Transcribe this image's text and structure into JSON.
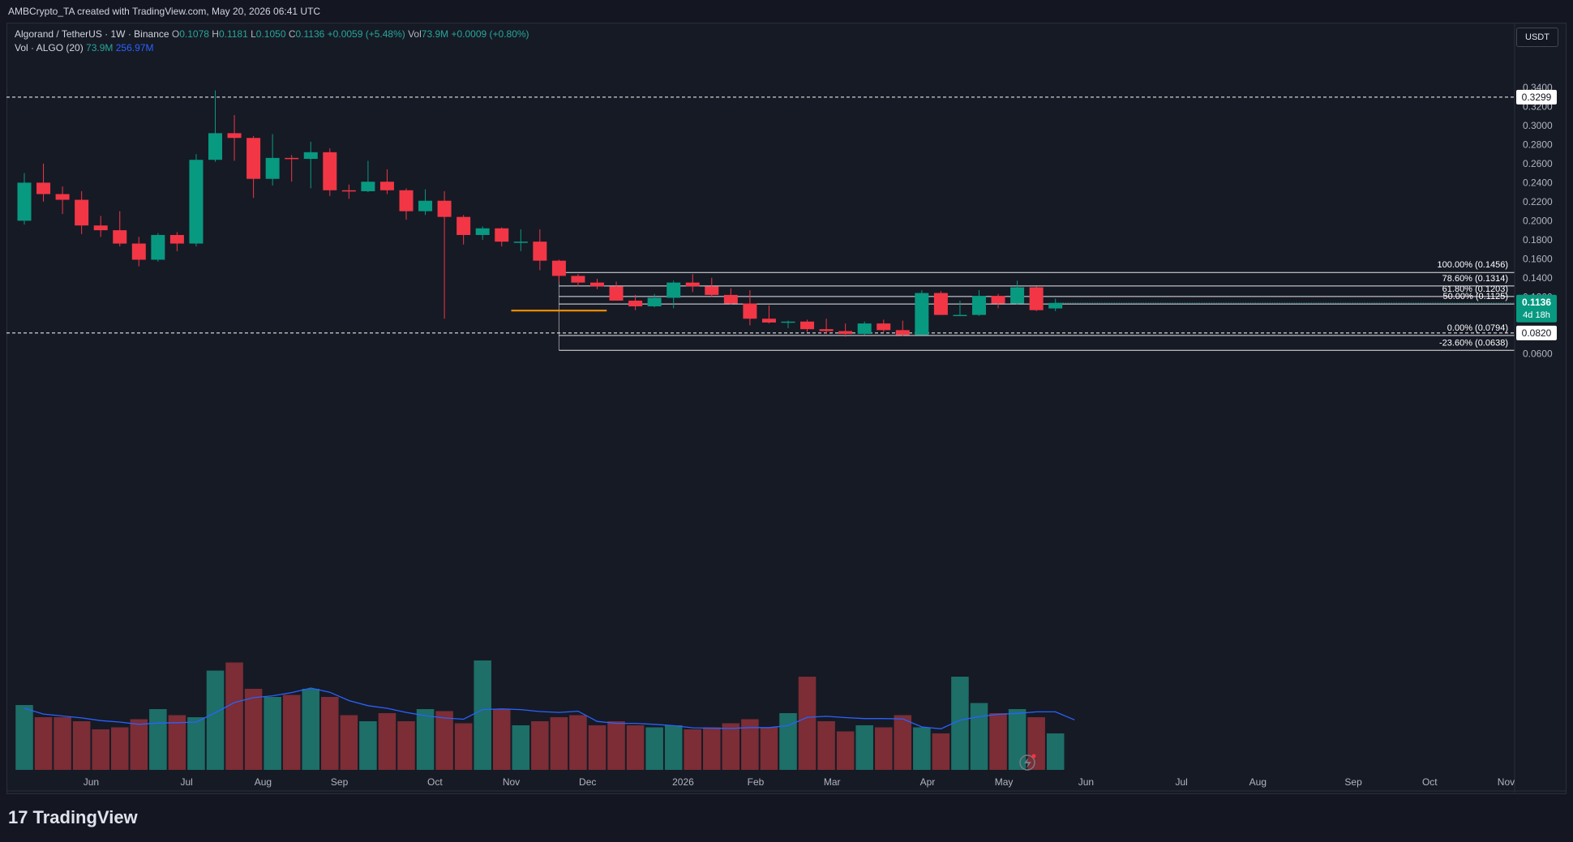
{
  "header": {
    "attribution": "AMBCrypto_TA created with TradingView.com, May 20, 2026 06:41 UTC"
  },
  "legend": {
    "symbol": "Algorand / TetherUS · 1W · Binance",
    "open_label": "O",
    "open": "0.1078",
    "high_label": "H",
    "high": "0.1181",
    "low_label": "L",
    "low": "0.1050",
    "close_label": "C",
    "close": "0.1136",
    "change": "+0.0059 (+5.48%)",
    "vol_label": "Vol",
    "vol": "73.9M",
    "vol_change": "+0.0009 (+0.80%)",
    "vol_study": "Vol · ALGO (20)",
    "vol_study_value": "73.9M",
    "vol_ma_value": "256.97M"
  },
  "currency_button": "USDT",
  "brand": {
    "logo_mark": "17",
    "name": "TradingView"
  },
  "colors": {
    "up": "#089981",
    "down": "#f23645",
    "vol_up": "#1d6f68",
    "vol_down": "#7c2d35",
    "ma": "#2962ff",
    "orange": "#ff9800"
  },
  "chart_data": {
    "type": "candlestick",
    "y_axis": {
      "min": 0.055,
      "max": 0.35,
      "ticks": [
        "0.3400",
        "0.3200",
        "0.3000",
        "0.2800",
        "0.2600",
        "0.2400",
        "0.2200",
        "0.2000",
        "0.1800",
        "0.1600",
        "0.1400",
        "0.1200",
        "0.1000",
        "0.0600"
      ]
    },
    "x_axis_labels": [
      {
        "i": 3.5,
        "label": "Jun"
      },
      {
        "i": 8.5,
        "label": "Jul"
      },
      {
        "i": 12.5,
        "label": "Aug"
      },
      {
        "i": 16.5,
        "label": "Sep"
      },
      {
        "i": 21.5,
        "label": "Oct"
      },
      {
        "i": 25.5,
        "label": "Nov"
      },
      {
        "i": 29.5,
        "label": "Dec"
      },
      {
        "i": 34.5,
        "label": "2026"
      },
      {
        "i": 38.3,
        "label": "Feb"
      },
      {
        "i": 42.3,
        "label": "Mar"
      },
      {
        "i": 47.3,
        "label": "Apr"
      },
      {
        "i": 51.3,
        "label": "May"
      },
      {
        "i": 55.6,
        "label": "Jun"
      },
      {
        "i": 60.6,
        "label": "Jul"
      },
      {
        "i": 64.6,
        "label": "Aug"
      },
      {
        "i": 69.6,
        "label": "Sep"
      },
      {
        "i": 73.6,
        "label": "Oct"
      },
      {
        "i": 77.6,
        "label": "Nov"
      }
    ],
    "candles": [
      {
        "o": 0.2,
        "h": 0.25,
        "l": 0.196,
        "c": 0.24
      },
      {
        "o": 0.24,
        "h": 0.26,
        "l": 0.22,
        "c": 0.228
      },
      {
        "o": 0.228,
        "h": 0.236,
        "l": 0.207,
        "c": 0.222
      },
      {
        "o": 0.222,
        "h": 0.231,
        "l": 0.186,
        "c": 0.195
      },
      {
        "o": 0.195,
        "h": 0.205,
        "l": 0.183,
        "c": 0.19
      },
      {
        "o": 0.19,
        "h": 0.21,
        "l": 0.173,
        "c": 0.176
      },
      {
        "o": 0.176,
        "h": 0.183,
        "l": 0.152,
        "c": 0.159
      },
      {
        "o": 0.159,
        "h": 0.187,
        "l": 0.157,
        "c": 0.185
      },
      {
        "o": 0.185,
        "h": 0.188,
        "l": 0.168,
        "c": 0.176
      },
      {
        "o": 0.176,
        "h": 0.27,
        "l": 0.173,
        "c": 0.264
      },
      {
        "o": 0.264,
        "h": 0.337,
        "l": 0.262,
        "c": 0.292
      },
      {
        "o": 0.292,
        "h": 0.311,
        "l": 0.263,
        "c": 0.287
      },
      {
        "o": 0.287,
        "h": 0.289,
        "l": 0.224,
        "c": 0.244
      },
      {
        "o": 0.244,
        "h": 0.291,
        "l": 0.237,
        "c": 0.266
      },
      {
        "o": 0.266,
        "h": 0.269,
        "l": 0.241,
        "c": 0.265
      },
      {
        "o": 0.265,
        "h": 0.283,
        "l": 0.234,
        "c": 0.272
      },
      {
        "o": 0.272,
        "h": 0.276,
        "l": 0.226,
        "c": 0.232
      },
      {
        "o": 0.232,
        "h": 0.238,
        "l": 0.223,
        "c": 0.231
      },
      {
        "o": 0.231,
        "h": 0.263,
        "l": 0.23,
        "c": 0.241
      },
      {
        "o": 0.241,
        "h": 0.254,
        "l": 0.228,
        "c": 0.232
      },
      {
        "o": 0.232,
        "h": 0.234,
        "l": 0.201,
        "c": 0.21
      },
      {
        "o": 0.21,
        "h": 0.233,
        "l": 0.206,
        "c": 0.221
      },
      {
        "o": 0.221,
        "h": 0.231,
        "l": 0.097,
        "c": 0.204
      },
      {
        "o": 0.204,
        "h": 0.206,
        "l": 0.175,
        "c": 0.185
      },
      {
        "o": 0.185,
        "h": 0.194,
        "l": 0.18,
        "c": 0.192
      },
      {
        "o": 0.192,
        "h": 0.193,
        "l": 0.173,
        "c": 0.178
      },
      {
        "o": 0.178,
        "h": 0.191,
        "l": 0.168,
        "c": 0.178
      },
      {
        "o": 0.178,
        "h": 0.191,
        "l": 0.148,
        "c": 0.158
      },
      {
        "o": 0.158,
        "h": 0.159,
        "l": 0.136,
        "c": 0.142
      },
      {
        "o": 0.142,
        "h": 0.144,
        "l": 0.131,
        "c": 0.135
      },
      {
        "o": 0.135,
        "h": 0.139,
        "l": 0.128,
        "c": 0.131
      },
      {
        "o": 0.131,
        "h": 0.136,
        "l": 0.116,
        "c": 0.116
      },
      {
        "o": 0.116,
        "h": 0.122,
        "l": 0.106,
        "c": 0.11
      },
      {
        "o": 0.11,
        "h": 0.123,
        "l": 0.109,
        "c": 0.119
      },
      {
        "o": 0.119,
        "h": 0.137,
        "l": 0.108,
        "c": 0.135
      },
      {
        "o": 0.135,
        "h": 0.144,
        "l": 0.125,
        "c": 0.131
      },
      {
        "o": 0.131,
        "h": 0.14,
        "l": 0.12,
        "c": 0.122
      },
      {
        "o": 0.122,
        "h": 0.129,
        "l": 0.112,
        "c": 0.113
      },
      {
        "o": 0.113,
        "h": 0.127,
        "l": 0.09,
        "c": 0.097
      },
      {
        "o": 0.097,
        "h": 0.111,
        "l": 0.092,
        "c": 0.093
      },
      {
        "o": 0.093,
        "h": 0.095,
        "l": 0.087,
        "c": 0.094
      },
      {
        "o": 0.094,
        "h": 0.096,
        "l": 0.083,
        "c": 0.086
      },
      {
        "o": 0.086,
        "h": 0.097,
        "l": 0.081,
        "c": 0.084
      },
      {
        "o": 0.084,
        "h": 0.092,
        "l": 0.078,
        "c": 0.081
      },
      {
        "o": 0.081,
        "h": 0.094,
        "l": 0.08,
        "c": 0.092
      },
      {
        "o": 0.092,
        "h": 0.096,
        "l": 0.083,
        "c": 0.085
      },
      {
        "o": 0.085,
        "h": 0.095,
        "l": 0.079,
        "c": 0.08
      },
      {
        "o": 0.08,
        "h": 0.127,
        "l": 0.08,
        "c": 0.124
      },
      {
        "o": 0.124,
        "h": 0.126,
        "l": 0.101,
        "c": 0.101
      },
      {
        "o": 0.101,
        "h": 0.116,
        "l": 0.101,
        "c": 0.101
      },
      {
        "o": 0.101,
        "h": 0.127,
        "l": 0.1,
        "c": 0.121
      },
      {
        "o": 0.121,
        "h": 0.123,
        "l": 0.108,
        "c": 0.113
      },
      {
        "o": 0.113,
        "h": 0.137,
        "l": 0.112,
        "c": 0.13
      },
      {
        "o": 0.13,
        "h": 0.131,
        "l": 0.105,
        "c": 0.106
      },
      {
        "o": 0.1078,
        "h": 0.1181,
        "l": 0.105,
        "c": 0.1136
      }
    ],
    "volume": {
      "max": 1000,
      "values": [
        320,
        260,
        260,
        240,
        200,
        210,
        250,
        300,
        270,
        260,
        490,
        530,
        400,
        360,
        370,
        400,
        360,
        270,
        240,
        280,
        240,
        300,
        290,
        230,
        540,
        300,
        220,
        240,
        260,
        270,
        220,
        240,
        220,
        210,
        220,
        200,
        210,
        230,
        250,
        210,
        280,
        460,
        240,
        190,
        220,
        210,
        270,
        210,
        180,
        460,
        330,
        280,
        300,
        260,
        180,
        210
      ]
    },
    "fib_levels": [
      {
        "label": "100.00% (0.1456)",
        "value": 0.1456
      },
      {
        "label": "78.60% (0.1314)",
        "value": 0.1314
      },
      {
        "label": "61.80% (0.1203)",
        "value": 0.1203
      },
      {
        "label": "50.00% (0.1125)",
        "value": 0.1125
      },
      {
        "label": "0.00% (0.0794)",
        "value": 0.0794
      },
      {
        "label": "-23.60% (0.0638)",
        "value": 0.0638
      }
    ],
    "dashed_lines": [
      {
        "value": 0.3299,
        "label": "0.3299"
      },
      {
        "value": 0.082,
        "label": "0.0820"
      }
    ],
    "last_price": {
      "value": 0.1136,
      "label": "0.1136",
      "countdown": "4d 18h"
    },
    "orange_line": {
      "value": 0.1055
    }
  }
}
